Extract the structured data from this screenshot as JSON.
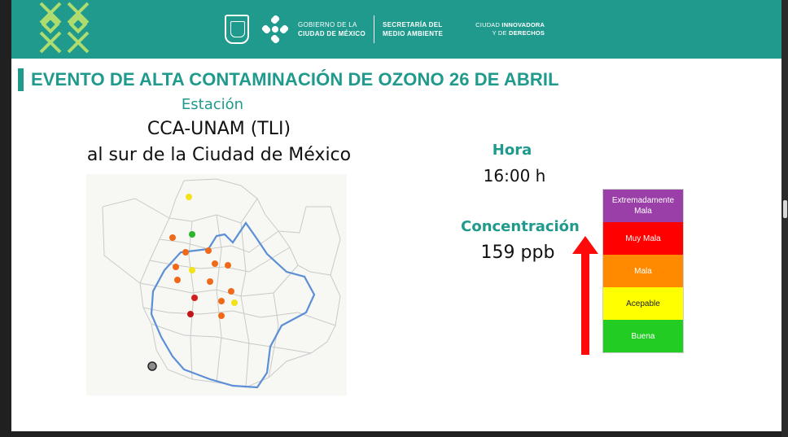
{
  "header": {
    "gov_line1": "GOBIERNO DE LA",
    "gov_line2": "CIUDAD DE MÉXICO",
    "sec_line1": "SECRETARÍA DEL",
    "sec_line2": "MEDIO AMBIENTE",
    "cdmx_line1_a": "CIUDAD ",
    "cdmx_line1_b": "INNOVADORA",
    "cdmx_line2_a": "Y DE ",
    "cdmx_line2_b": "DERECHOS",
    "band_color": "#1f9a8c"
  },
  "title": "EVENTO DE ALTA CONTAMINACIÓN DE OZONO 26 DE ABRIL",
  "station": {
    "label": "Estación",
    "name": "CCA-UNAM (TLI)",
    "location": "al sur de la Ciudad de México"
  },
  "hora": {
    "label": "Hora",
    "value": "16:00 h"
  },
  "concentration": {
    "label": "Concentración",
    "value": "159 ppb"
  },
  "scale": [
    {
      "label": "Extremadamente Mala",
      "color": "#9b3fa8"
    },
    {
      "label": "Muy Mala",
      "color": "#ff0000"
    },
    {
      "label": "Mala",
      "color": "#ff8a00"
    },
    {
      "label": "Acepable",
      "color": "#ffff00"
    },
    {
      "label": "Buena",
      "color": "#22cc22"
    }
  ],
  "map": {
    "station_markers": [
      {
        "category": "Acepable",
        "color": "#f2e21a"
      },
      {
        "category": "Buena",
        "color": "#2ab52a"
      },
      {
        "category": "Mala",
        "color": "#ee6a1a"
      },
      {
        "category": "Mala",
        "color": "#ee6a1a"
      },
      {
        "category": "Mala",
        "color": "#ee6a1a"
      },
      {
        "category": "Mala",
        "color": "#ee6a1a"
      },
      {
        "category": "Mala",
        "color": "#ee6a1a"
      },
      {
        "category": "Acepable",
        "color": "#f2e21a"
      },
      {
        "category": "Mala",
        "color": "#ee6a1a"
      },
      {
        "category": "Mala",
        "color": "#ee6a1a"
      },
      {
        "category": "Mala",
        "color": "#ee6a1a"
      },
      {
        "category": "Muy Mala",
        "color": "#d31f1f"
      },
      {
        "category": "Mala",
        "color": "#ee6a1a"
      },
      {
        "category": "Acepable",
        "color": "#f2e21a"
      },
      {
        "category": "Mala",
        "color": "#ee6a1a"
      },
      {
        "category": "Muy Mala",
        "color": "#c01616"
      },
      {
        "category": "Mala",
        "color": "#ee6a1a"
      }
    ],
    "highlight_marker": {
      "label": "CCA-UNAM (TLI)",
      "color": "#888888"
    }
  }
}
